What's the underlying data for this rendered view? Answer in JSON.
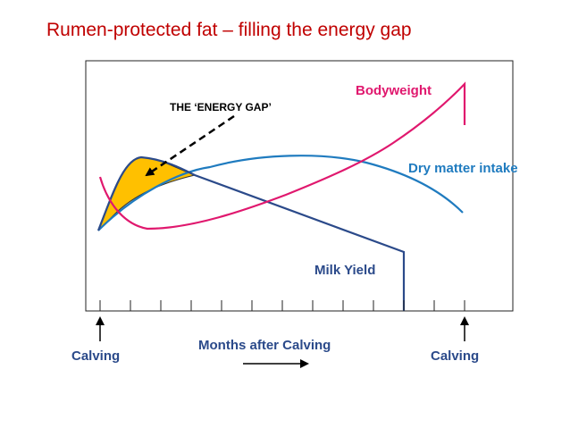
{
  "title": "Rumen-protected fat – filling the energy gap",
  "annotations": {
    "energy_gap": "THE ‘ENERGY GAP’",
    "bodyweight": "Bodyweight",
    "dry_matter_intake": "Dry matter intake",
    "milk_yield": "Milk Yield"
  },
  "axis": {
    "xlabel": "Months after Calving",
    "start_label": "Calving",
    "end_label": "Calving"
  },
  "colors": {
    "title": "#c00000",
    "bodyweight": "#e0186e",
    "dry_matter_intake": "#1f7bbf",
    "milk_yield": "#2b4a8a",
    "energy_gap_fill": "#ffc000",
    "annotation_text": "#000000"
  }
}
